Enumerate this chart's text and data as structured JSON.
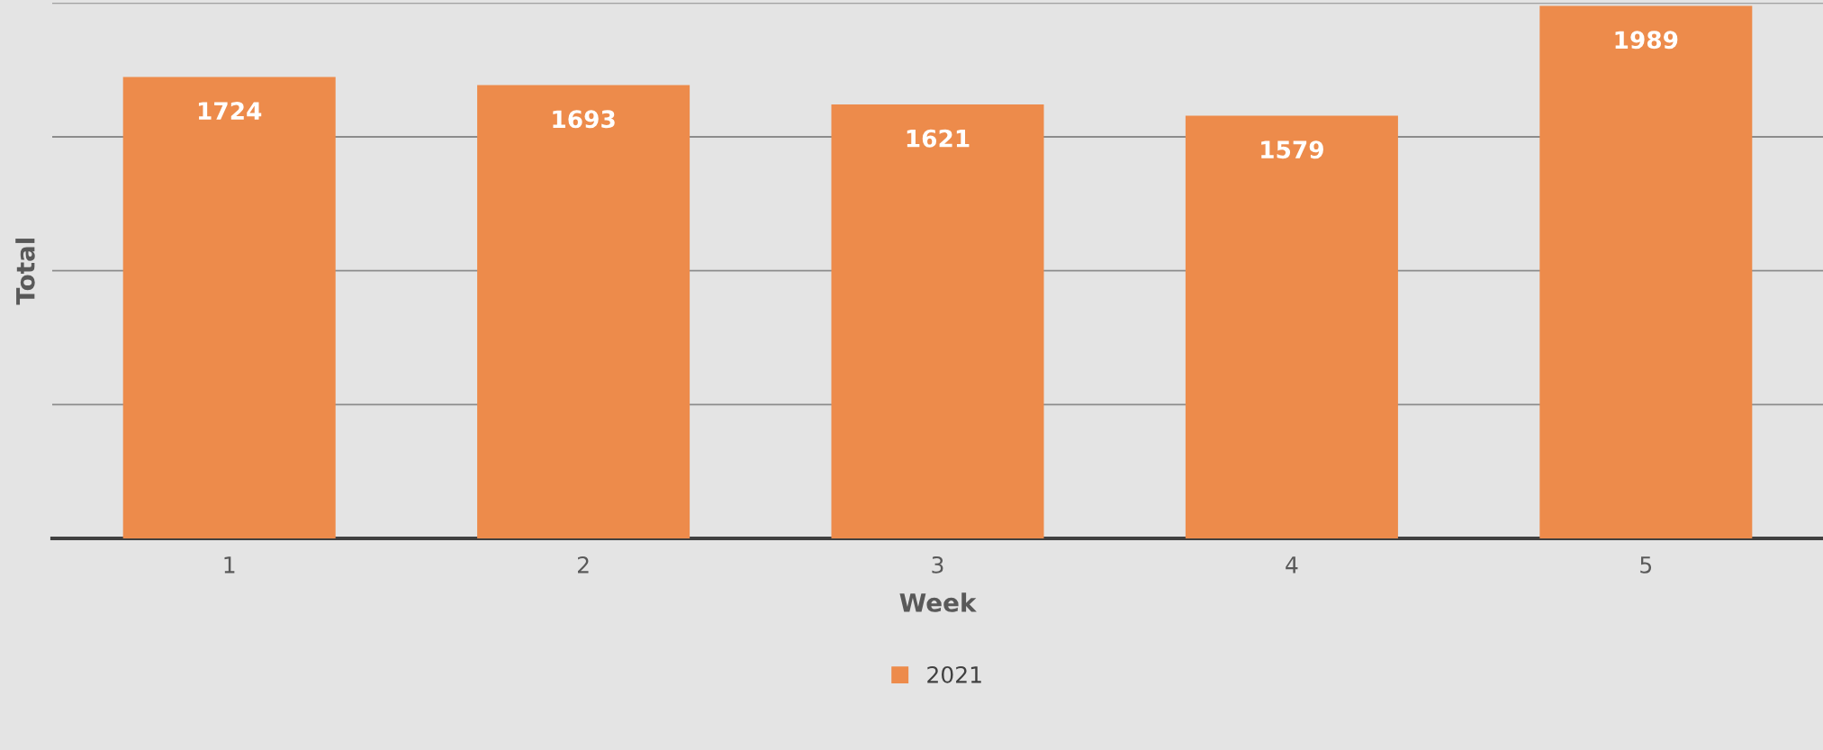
{
  "chart_data": {
    "type": "bar",
    "xlabel": "Week",
    "ylabel": "Total",
    "categories": [
      "1",
      "2",
      "3",
      "4",
      "5"
    ],
    "series": [
      {
        "name": "2021",
        "color": "#ed8b4b",
        "values": [
          1724,
          1693,
          1621,
          1579,
          1989
        ]
      }
    ],
    "ylim": [
      0,
      2000
    ],
    "yticks": [
      {
        "value": 0,
        "label": null
      },
      {
        "value": 500,
        "label": null
      },
      {
        "value": 1000,
        "label": null
      },
      {
        "value": 1500,
        "label": null
      },
      {
        "value": 2000,
        "label": null
      }
    ],
    "grid": "y",
    "legend": "bottom",
    "data_labels": true
  }
}
